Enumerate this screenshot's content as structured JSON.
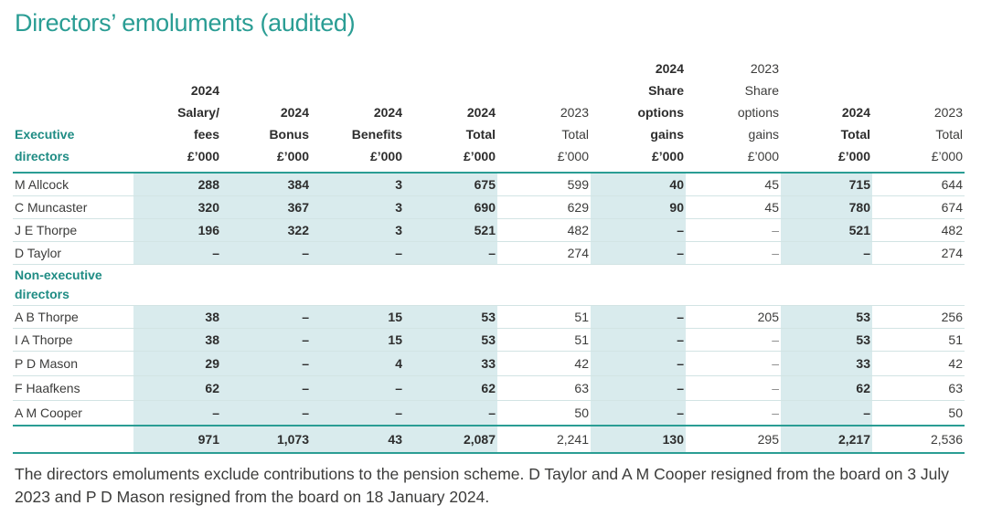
{
  "title": "Directors’ emoluments (audited)",
  "header": {
    "label": [
      "Executive",
      "directors"
    ],
    "columns": [
      {
        "lines": [
          "2024",
          "Salary/",
          "fees",
          "£’000"
        ],
        "bold": true
      },
      {
        "lines": [
          "2024",
          "Bonus",
          "£’000"
        ],
        "bold": true
      },
      {
        "lines": [
          "2024",
          "Benefits",
          "£’000"
        ],
        "bold": true
      },
      {
        "lines": [
          "2024",
          "Total",
          "£’000"
        ],
        "bold": true
      },
      {
        "lines": [
          "2023",
          "Total",
          "£’000"
        ],
        "bold": false
      },
      {
        "lines": [
          "2024",
          "Share",
          "options",
          "gains",
          "£’000"
        ],
        "bold": true
      },
      {
        "lines": [
          "2023",
          "Share",
          "options",
          "gains",
          "£’000"
        ],
        "bold": false
      },
      {
        "lines": [
          "2024",
          "Total",
          "£’000"
        ],
        "bold": true
      },
      {
        "lines": [
          "2023",
          "Total",
          "£’000"
        ],
        "bold": false
      }
    ]
  },
  "highlight_columns": [
    0,
    1,
    2,
    3,
    5,
    7
  ],
  "executive_rows": [
    {
      "name": "M Allcock",
      "values": [
        "288",
        "384",
        "3",
        "675",
        "599",
        "40",
        "45",
        "715",
        "644"
      ]
    },
    {
      "name": "C Muncaster",
      "values": [
        "320",
        "367",
        "3",
        "690",
        "629",
        "90",
        "45",
        "780",
        "674"
      ]
    },
    {
      "name": "J E Thorpe",
      "values": [
        "196",
        "322",
        "3",
        "521",
        "482",
        "–",
        "–",
        "521",
        "482"
      ]
    },
    {
      "name": "D Taylor",
      "values": [
        "–",
        "–",
        "–",
        "–",
        "274",
        "–",
        "–",
        "–",
        "274"
      ]
    }
  ],
  "non_executive_label": [
    "Non-executive",
    "directors"
  ],
  "non_executive_rows": [
    {
      "name": "A B Thorpe",
      "values": [
        "38",
        "–",
        "15",
        "53",
        "51",
        "–",
        "205",
        "53",
        "256"
      ]
    },
    {
      "name": "I A Thorpe",
      "values": [
        "38",
        "–",
        "15",
        "53",
        "51",
        "–",
        "–",
        "53",
        "51"
      ]
    },
    {
      "name": "P D Mason",
      "values": [
        "29",
        "–",
        "4",
        "33",
        "42",
        "–",
        "–",
        "33",
        "42"
      ]
    },
    {
      "name": "F Haafkens",
      "values": [
        "62",
        "–",
        "–",
        "62",
        "63",
        "–",
        "–",
        "62",
        "63"
      ]
    },
    {
      "name": "A M Cooper",
      "values": [
        "–",
        "–",
        "–",
        "–",
        "50",
        "–",
        "–",
        "–",
        "50"
      ]
    }
  ],
  "total_row": {
    "values": [
      "971",
      "1,073",
      "43",
      "2,087",
      "2,241",
      "130",
      "295",
      "2,217",
      "2,536"
    ]
  },
  "note": "The directors emoluments exclude contributions to the pension scheme. D Taylor and A M Cooper resigned from the board on 3 July 2023 and P D Mason resigned from the board on 18 January 2024."
}
